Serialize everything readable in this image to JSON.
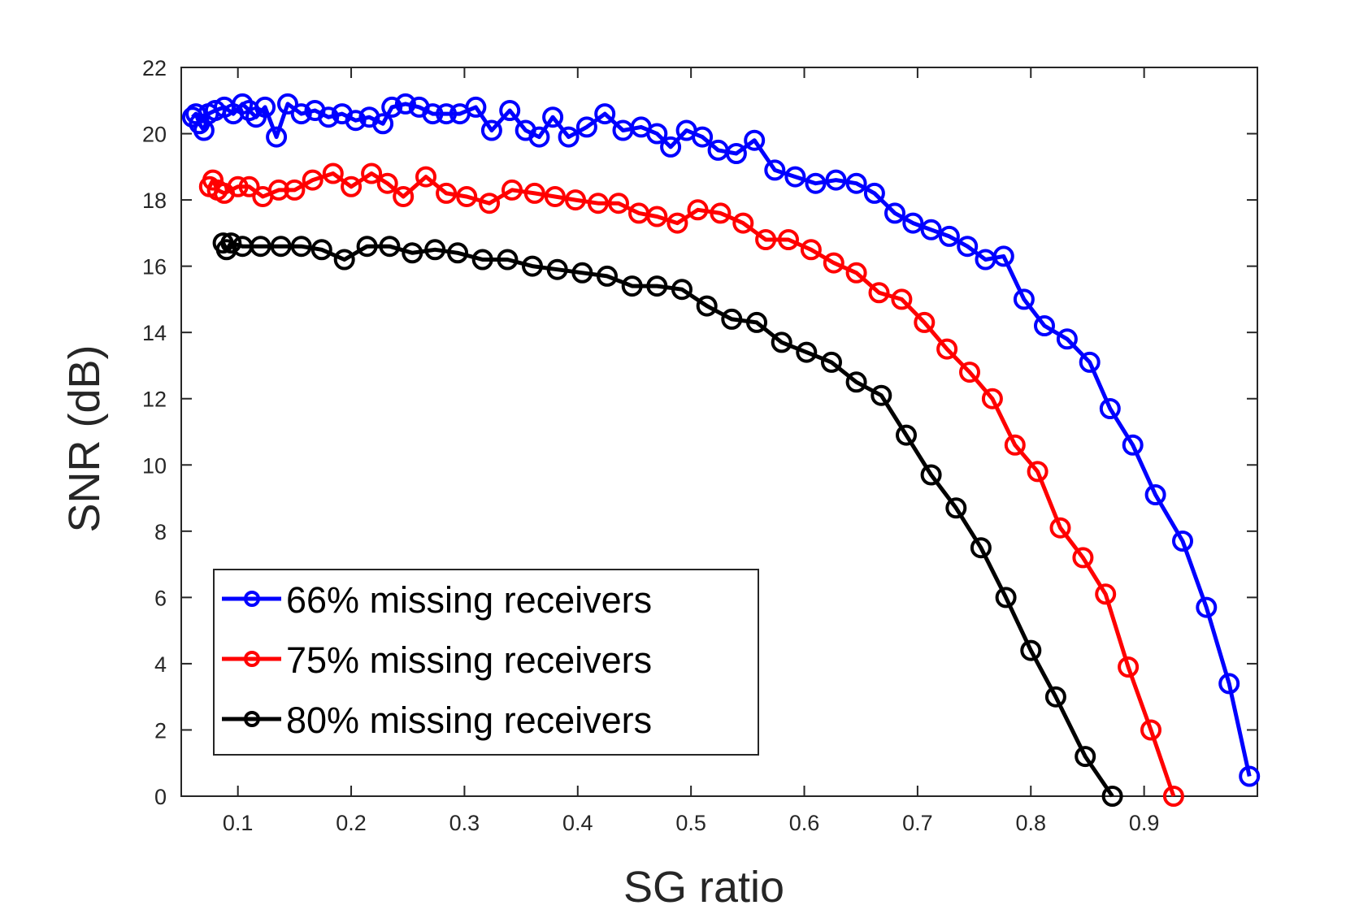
{
  "chart_data": {
    "type": "line",
    "xlabel": "SG ratio",
    "ylabel": "SNR (dB)",
    "xlim": [
      0.05,
      1.0
    ],
    "ylim": [
      0,
      22
    ],
    "xticks": [
      "0.1",
      "0.2",
      "0.3",
      "0.4",
      "0.5",
      "0.6",
      "0.7",
      "0.8",
      "0.9"
    ],
    "yticks": [
      "0",
      "2",
      "4",
      "6",
      "8",
      "10",
      "12",
      "14",
      "16",
      "18",
      "20",
      "22"
    ],
    "grid": false,
    "legend_position": "bottom-left",
    "series": [
      {
        "name": "66% missing receivers",
        "color": "#0000ff",
        "points": [
          [
            0.06,
            20.5
          ],
          [
            0.063,
            20.6
          ],
          [
            0.066,
            20.3
          ],
          [
            0.07,
            20.1
          ],
          [
            0.074,
            20.6
          ],
          [
            0.08,
            20.7
          ],
          [
            0.088,
            20.8
          ],
          [
            0.096,
            20.6
          ],
          [
            0.104,
            20.9
          ],
          [
            0.11,
            20.7
          ],
          [
            0.116,
            20.5
          ],
          [
            0.124,
            20.8
          ],
          [
            0.134,
            19.9
          ],
          [
            0.144,
            20.9
          ],
          [
            0.156,
            20.6
          ],
          [
            0.168,
            20.7
          ],
          [
            0.18,
            20.5
          ],
          [
            0.192,
            20.6
          ],
          [
            0.204,
            20.4
          ],
          [
            0.216,
            20.5
          ],
          [
            0.228,
            20.3
          ],
          [
            0.236,
            20.8
          ],
          [
            0.248,
            20.9
          ],
          [
            0.26,
            20.8
          ],
          [
            0.272,
            20.6
          ],
          [
            0.284,
            20.6
          ],
          [
            0.296,
            20.6
          ],
          [
            0.31,
            20.8
          ],
          [
            0.324,
            20.1
          ],
          [
            0.34,
            20.7
          ],
          [
            0.354,
            20.1
          ],
          [
            0.366,
            19.9
          ],
          [
            0.378,
            20.5
          ],
          [
            0.392,
            19.9
          ],
          [
            0.408,
            20.2
          ],
          [
            0.424,
            20.6
          ],
          [
            0.44,
            20.1
          ],
          [
            0.456,
            20.2
          ],
          [
            0.47,
            20.0
          ],
          [
            0.482,
            19.6
          ],
          [
            0.496,
            20.1
          ],
          [
            0.51,
            19.9
          ],
          [
            0.524,
            19.5
          ],
          [
            0.54,
            19.4
          ],
          [
            0.556,
            19.8
          ],
          [
            0.574,
            18.9
          ],
          [
            0.592,
            18.7
          ],
          [
            0.61,
            18.5
          ],
          [
            0.628,
            18.6
          ],
          [
            0.646,
            18.5
          ],
          [
            0.662,
            18.2
          ],
          [
            0.68,
            17.6
          ],
          [
            0.696,
            17.3
          ],
          [
            0.712,
            17.1
          ],
          [
            0.728,
            16.9
          ],
          [
            0.744,
            16.6
          ],
          [
            0.76,
            16.2
          ],
          [
            0.776,
            16.3
          ],
          [
            0.794,
            15.0
          ],
          [
            0.812,
            14.2
          ],
          [
            0.832,
            13.8
          ],
          [
            0.852,
            13.1
          ],
          [
            0.87,
            11.7
          ],
          [
            0.89,
            10.6
          ],
          [
            0.91,
            9.1
          ],
          [
            0.934,
            7.7
          ],
          [
            0.955,
            5.7
          ],
          [
            0.975,
            3.4
          ],
          [
            0.993,
            0.6
          ]
        ]
      },
      {
        "name": "75% missing receivers",
        "color": "#ff0000",
        "points": [
          [
            0.075,
            18.4
          ],
          [
            0.078,
            18.6
          ],
          [
            0.082,
            18.3
          ],
          [
            0.088,
            18.2
          ],
          [
            0.1,
            18.4
          ],
          [
            0.11,
            18.4
          ],
          [
            0.122,
            18.1
          ],
          [
            0.136,
            18.3
          ],
          [
            0.15,
            18.3
          ],
          [
            0.166,
            18.6
          ],
          [
            0.184,
            18.8
          ],
          [
            0.2,
            18.4
          ],
          [
            0.218,
            18.8
          ],
          [
            0.232,
            18.5
          ],
          [
            0.246,
            18.1
          ],
          [
            0.266,
            18.7
          ],
          [
            0.284,
            18.2
          ],
          [
            0.302,
            18.1
          ],
          [
            0.322,
            17.9
          ],
          [
            0.342,
            18.3
          ],
          [
            0.362,
            18.2
          ],
          [
            0.38,
            18.1
          ],
          [
            0.398,
            18.0
          ],
          [
            0.418,
            17.9
          ],
          [
            0.436,
            17.9
          ],
          [
            0.454,
            17.6
          ],
          [
            0.47,
            17.5
          ],
          [
            0.488,
            17.3
          ],
          [
            0.506,
            17.7
          ],
          [
            0.526,
            17.6
          ],
          [
            0.546,
            17.3
          ],
          [
            0.566,
            16.8
          ],
          [
            0.586,
            16.8
          ],
          [
            0.606,
            16.5
          ],
          [
            0.626,
            16.1
          ],
          [
            0.646,
            15.8
          ],
          [
            0.666,
            15.2
          ],
          [
            0.686,
            15.0
          ],
          [
            0.706,
            14.3
          ],
          [
            0.726,
            13.5
          ],
          [
            0.746,
            12.8
          ],
          [
            0.766,
            12.0
          ],
          [
            0.786,
            10.6
          ],
          [
            0.806,
            9.8
          ],
          [
            0.826,
            8.1
          ],
          [
            0.846,
            7.2
          ],
          [
            0.866,
            6.1
          ],
          [
            0.886,
            3.9
          ],
          [
            0.906,
            2.0
          ],
          [
            0.926,
            0.0
          ]
        ]
      },
      {
        "name": "80% missing receivers",
        "color": "#000000",
        "points": [
          [
            0.087,
            16.7
          ],
          [
            0.09,
            16.5
          ],
          [
            0.094,
            16.7
          ],
          [
            0.104,
            16.6
          ],
          [
            0.12,
            16.6
          ],
          [
            0.138,
            16.6
          ],
          [
            0.156,
            16.6
          ],
          [
            0.174,
            16.5
          ],
          [
            0.194,
            16.2
          ],
          [
            0.214,
            16.6
          ],
          [
            0.234,
            16.6
          ],
          [
            0.254,
            16.4
          ],
          [
            0.274,
            16.5
          ],
          [
            0.294,
            16.4
          ],
          [
            0.316,
            16.2
          ],
          [
            0.338,
            16.2
          ],
          [
            0.36,
            16.0
          ],
          [
            0.382,
            15.9
          ],
          [
            0.404,
            15.8
          ],
          [
            0.426,
            15.7
          ],
          [
            0.448,
            15.4
          ],
          [
            0.47,
            15.4
          ],
          [
            0.492,
            15.3
          ],
          [
            0.514,
            14.8
          ],
          [
            0.536,
            14.4
          ],
          [
            0.558,
            14.3
          ],
          [
            0.58,
            13.7
          ],
          [
            0.602,
            13.4
          ],
          [
            0.624,
            13.1
          ],
          [
            0.646,
            12.5
          ],
          [
            0.668,
            12.1
          ],
          [
            0.69,
            10.9
          ],
          [
            0.712,
            9.7
          ],
          [
            0.734,
            8.7
          ],
          [
            0.756,
            7.5
          ],
          [
            0.778,
            6.0
          ],
          [
            0.8,
            4.4
          ],
          [
            0.822,
            3.0
          ],
          [
            0.848,
            1.2
          ],
          [
            0.872,
            0.0
          ]
        ]
      }
    ]
  }
}
